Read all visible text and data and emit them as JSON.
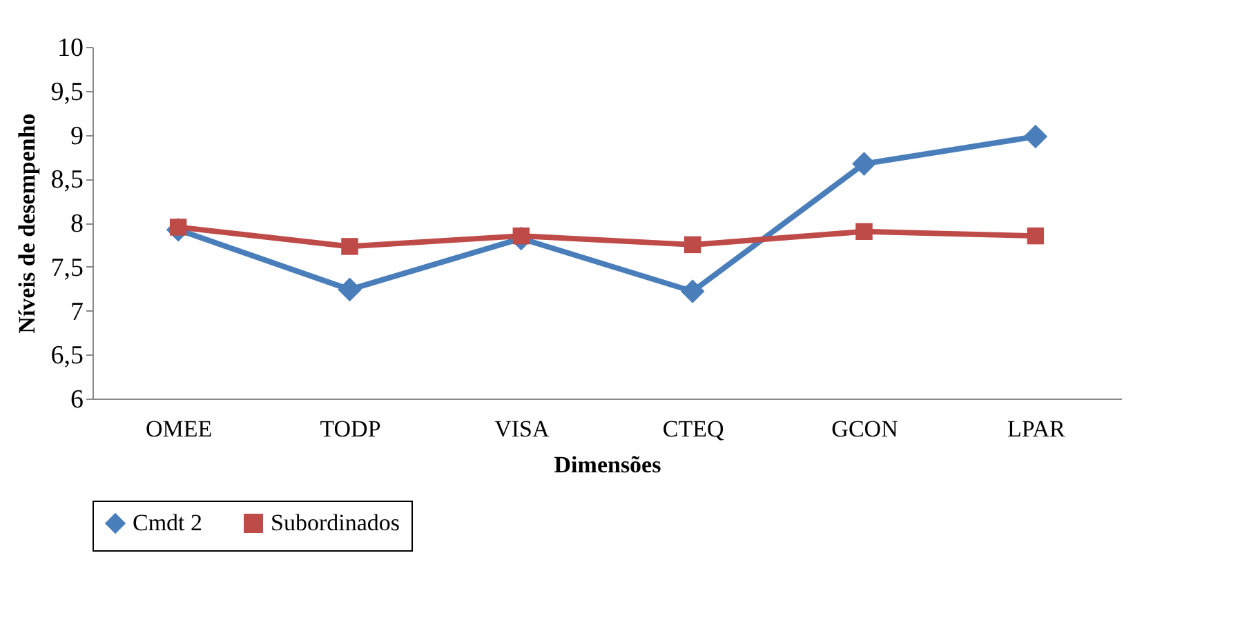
{
  "chart_data": {
    "type": "line",
    "xlabel": "Dimensões",
    "ylabel": "Níveis de desempenho",
    "categories": [
      "OMEE",
      "TODP",
      "VISA",
      "CTEQ",
      "GCON",
      "LPAR"
    ],
    "series": [
      {
        "name": "Cmdt 2",
        "color": "#4a7ebb",
        "marker": "diamond",
        "values": [
          7.92,
          7.24,
          7.82,
          7.22,
          8.67,
          8.98
        ]
      },
      {
        "name": "Subordinados",
        "color": "#be4b48",
        "marker": "square",
        "values": [
          7.95,
          7.73,
          7.85,
          7.75,
          7.9,
          7.85
        ]
      }
    ],
    "ylim": [
      6,
      10
    ],
    "yticks": [
      6,
      {
        "value": 6.5,
        "label": "6,5"
      },
      7,
      {
        "value": 7.5,
        "label": "7,5"
      },
      8,
      {
        "value": 8.5,
        "label": "8,5"
      },
      9,
      {
        "value": 9.5,
        "label": "9,5"
      },
      10
    ],
    "grid": false,
    "legend": "bottom"
  }
}
